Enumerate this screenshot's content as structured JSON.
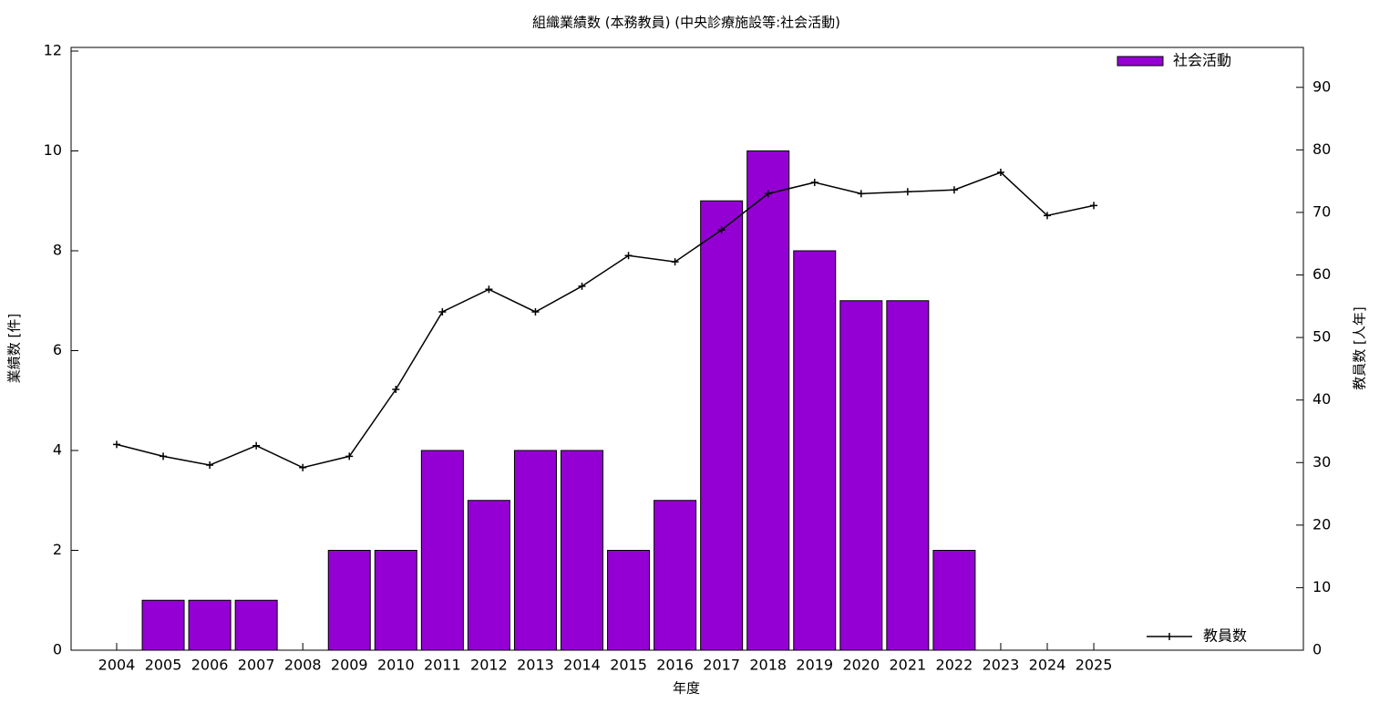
{
  "chart_data": {
    "type": "bar-line",
    "title": "組織業績数 (本務教員) (中央診療施設等:社会活動)",
    "x_label": "年度",
    "y_label": "業績数 [件]",
    "y2_label": "教員数 [人年]",
    "categories": [
      "2004",
      "2005",
      "2006",
      "2007",
      "2008",
      "2009",
      "2010",
      "2011",
      "2012",
      "2013",
      "2014",
      "2015",
      "2016",
      "2017",
      "2018",
      "2019",
      "2020",
      "2021",
      "2022",
      "2023",
      "2024",
      "2025"
    ],
    "series": [
      {
        "name": "社会活動",
        "type": "bar",
        "color": "#9400d3",
        "values": [
          0,
          1,
          1,
          1,
          0,
          2,
          2,
          4,
          3,
          4,
          4,
          2,
          3,
          9,
          10,
          8,
          7,
          7,
          2,
          null,
          null,
          null
        ]
      },
      {
        "name": "教員数",
        "type": "line",
        "axis": "y2",
        "color": "#000000",
        "values": [
          32.9,
          31.0,
          29.6,
          32.7,
          29.2,
          31.0,
          41.7,
          54.1,
          57.7,
          54.1,
          58.2,
          63.1,
          62.1,
          67.2,
          73.0,
          74.8,
          73.0,
          73.3,
          73.6,
          76.4,
          69.5,
          71.1
        ]
      }
    ],
    "ylim": [
      0,
      12
    ],
    "yticks": [
      0,
      2,
      4,
      6,
      8,
      10,
      12
    ],
    "y2lim": [
      0,
      95.8
    ],
    "y2ticks": [
      0,
      10,
      20,
      30,
      40,
      50,
      60,
      70,
      80,
      90
    ]
  }
}
